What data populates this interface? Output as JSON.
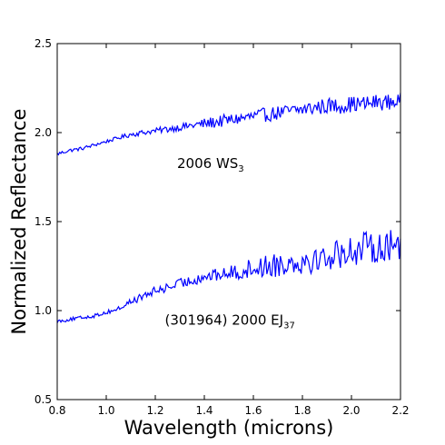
{
  "chart_data": {
    "type": "line",
    "xlabel": "Wavelength (microns)",
    "ylabel": "Normalized Reflectance",
    "xlim": [
      0.8,
      2.2
    ],
    "ylim": [
      0.5,
      2.5
    ],
    "xticks": [
      "0.8",
      "1.0",
      "1.2",
      "1.4",
      "1.6",
      "1.8",
      "2.0",
      "2.2"
    ],
    "yticks": [
      "0.5",
      "1.0",
      "1.5",
      "2.0",
      "2.5"
    ],
    "grid": false,
    "line_color": "#0000ff",
    "annotations": [
      {
        "text": "2006 WS",
        "sub": "3",
        "x": 1.4,
        "y": 1.8
      },
      {
        "text": "(301964) 2000 EJ",
        "sub": "37",
        "x": 1.35,
        "y": 0.92
      }
    ],
    "series": [
      {
        "x": [
          0.8,
          0.85,
          0.9,
          0.95,
          1.0,
          1.05,
          1.1,
          1.15,
          1.2,
          1.25,
          1.3,
          1.35,
          1.4,
          1.45,
          1.5,
          1.55,
          1.6,
          1.65,
          1.7,
          1.75,
          1.8,
          1.85,
          1.9,
          1.95,
          2.0,
          2.05,
          2.1,
          2.15,
          2.2
        ],
        "values": [
          1.88,
          1.9,
          1.91,
          1.93,
          1.95,
          1.97,
          1.99,
          2.0,
          2.01,
          2.02,
          2.03,
          2.04,
          2.05,
          2.06,
          2.07,
          2.08,
          2.09,
          2.1,
          2.11,
          2.12,
          2.13,
          2.14,
          2.15,
          2.15,
          2.16,
          2.16,
          2.17,
          2.17,
          2.18
        ],
        "noise": [
          0.01,
          0.01,
          0.01,
          0.01,
          0.01,
          0.01,
          0.015,
          0.015,
          0.015,
          0.02,
          0.02,
          0.025,
          0.03,
          0.035,
          0.035,
          0.035,
          0.04,
          0.04,
          0.04,
          0.04,
          0.04,
          0.045,
          0.045,
          0.045,
          0.045,
          0.045,
          0.045,
          0.045,
          0.045
        ]
      },
      {
        "x": [
          0.8,
          0.85,
          0.9,
          0.95,
          1.0,
          1.05,
          1.1,
          1.15,
          1.2,
          1.25,
          1.3,
          1.35,
          1.4,
          1.45,
          1.5,
          1.55,
          1.6,
          1.65,
          1.7,
          1.75,
          1.8,
          1.85,
          1.9,
          1.95,
          2.0,
          2.05,
          2.1,
          2.15,
          2.2
        ],
        "values": [
          0.94,
          0.95,
          0.96,
          0.97,
          0.99,
          1.01,
          1.05,
          1.08,
          1.11,
          1.13,
          1.15,
          1.17,
          1.19,
          1.2,
          1.21,
          1.22,
          1.24,
          1.25,
          1.26,
          1.27,
          1.28,
          1.29,
          1.3,
          1.32,
          1.34,
          1.35,
          1.36,
          1.36,
          1.37
        ],
        "noise": [
          0.01,
          0.01,
          0.01,
          0.01,
          0.012,
          0.015,
          0.02,
          0.02,
          0.025,
          0.025,
          0.03,
          0.03,
          0.03,
          0.035,
          0.04,
          0.05,
          0.06,
          0.065,
          0.07,
          0.07,
          0.075,
          0.08,
          0.08,
          0.085,
          0.09,
          0.09,
          0.09,
          0.09,
          0.09
        ]
      }
    ]
  }
}
